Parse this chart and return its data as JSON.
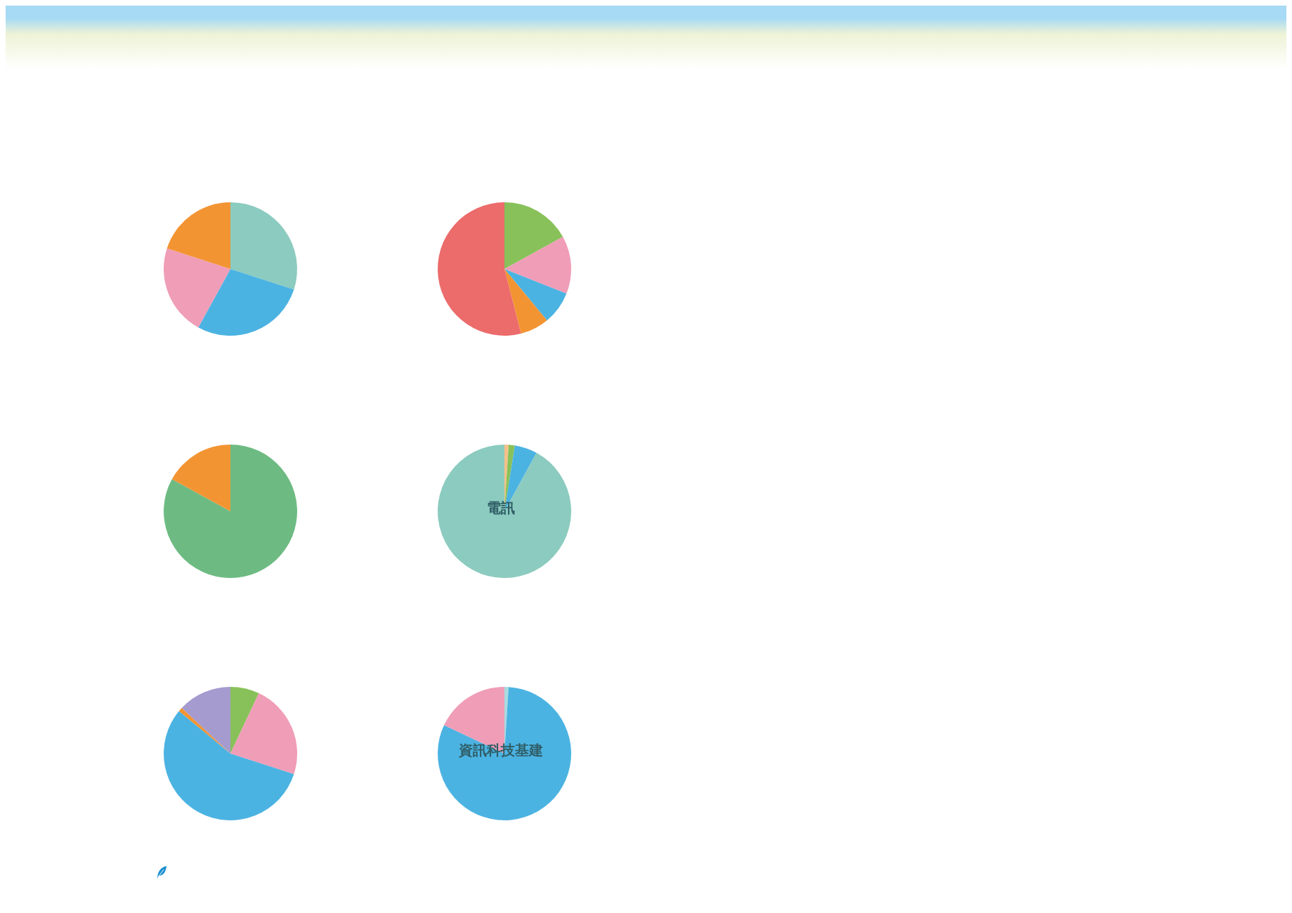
{
  "chart_data": [
    {
      "type": "pie",
      "categories": [
        null,
        null,
        null,
        null
      ],
      "values": [
        30,
        28,
        22,
        20
      ],
      "colors": [
        "#8ccbbf",
        "#4bb3e2",
        "#f09db7",
        "#f39433"
      ]
    },
    {
      "type": "pie",
      "categories": [
        null,
        null,
        null,
        null,
        null
      ],
      "values": [
        17,
        14,
        8,
        7,
        54
      ],
      "colors": [
        "#88c15a",
        "#f09db7",
        "#4bb3e2",
        "#f39433",
        "#ec6b6b"
      ]
    },
    {
      "type": "pie",
      "categories": [
        null,
        null
      ],
      "values": [
        83,
        17
      ],
      "colors": [
        "#6dbb82",
        "#f39433"
      ]
    },
    {
      "type": "pie",
      "title": "電訊",
      "categories": [
        null,
        null,
        null,
        null
      ],
      "values": [
        1,
        1.5,
        5.5,
        92
      ],
      "colors": [
        "#f7c08a",
        "#88c15a",
        "#4bb3e2",
        "#8ccbbf"
      ]
    },
    {
      "type": "pie",
      "categories": [
        null,
        null,
        null,
        null,
        null
      ],
      "values": [
        7,
        23,
        56,
        1,
        13
      ],
      "colors": [
        "#88c15a",
        "#f09db7",
        "#4bb3e2",
        "#f39433",
        "#a59bcf"
      ]
    },
    {
      "type": "pie",
      "title": "資訊科技基建",
      "categories": [
        null,
        null,
        null
      ],
      "values": [
        1,
        81,
        18
      ],
      "colors": [
        "#a8dbe0",
        "#4bb3e2",
        "#f09db7"
      ]
    }
  ]
}
